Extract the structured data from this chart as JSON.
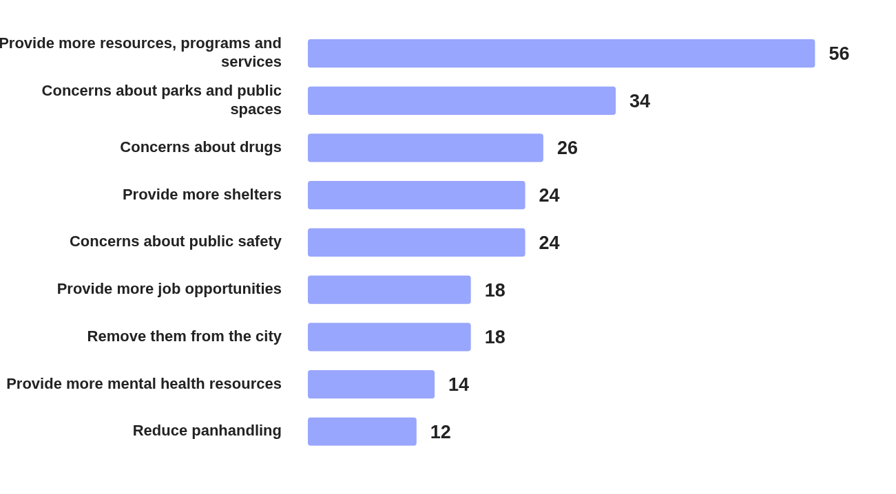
{
  "chart_data": {
    "type": "bar",
    "orientation": "horizontal",
    "categories": [
      "Provide more resources, programs and services",
      "Concerns about parks and public spaces",
      "Concerns about drugs",
      "Provide more shelters",
      "Concerns about public safety",
      "Provide more job opportunities",
      "Remove them from the city",
      "Provide more mental health resources",
      "Reduce panhandling"
    ],
    "values": [
      56,
      34,
      26,
      24,
      24,
      18,
      18,
      14,
      12
    ],
    "color": "#99a6fd",
    "data_labels": true,
    "grid": false,
    "legend": false,
    "tick_labels": "y"
  }
}
